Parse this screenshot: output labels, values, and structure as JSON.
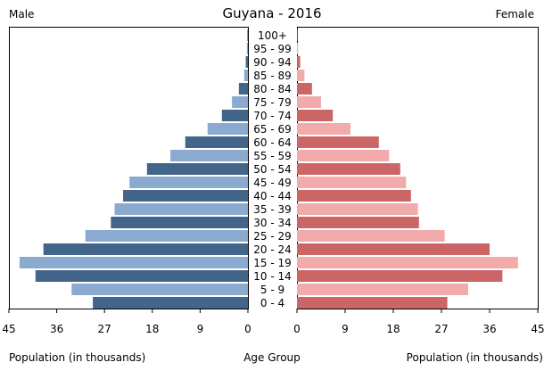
{
  "chart_data": {
    "type": "bar",
    "title": "Guyana - 2016",
    "left_label": "Male",
    "right_label": "Female",
    "xlabel_left": "Population (in thousands)",
    "xlabel_center": "Age Group",
    "xlabel_right": "Population (in thousands)",
    "xlim": [
      0,
      45
    ],
    "x_ticks": [
      45,
      36,
      27,
      18,
      9,
      0
    ],
    "x_ticks_right": [
      0,
      9,
      18,
      27,
      36,
      45
    ],
    "categories": [
      "100+",
      "95 - 99",
      "90 - 94",
      "85 - 89",
      "80 - 84",
      "75 - 79",
      "70 - 74",
      "65 - 69",
      "60 - 64",
      "55 - 59",
      "50 - 54",
      "45 - 49",
      "40 - 44",
      "35 - 39",
      "30 - 34",
      "25 - 29",
      "20 - 24",
      "15 - 19",
      "10 - 14",
      "5 - 9",
      "0 - 4"
    ],
    "series": [
      {
        "name": "Male",
        "values": [
          0.1,
          0.2,
          0.4,
          0.7,
          1.7,
          3.0,
          4.9,
          7.6,
          11.8,
          14.6,
          19.0,
          22.3,
          23.5,
          25.1,
          25.8,
          30.6,
          38.5,
          43.0,
          40.0,
          33.2,
          29.2
        ]
      },
      {
        "name": "Female",
        "values": [
          0.1,
          0.2,
          0.6,
          1.4,
          2.8,
          4.5,
          6.7,
          10.0,
          15.3,
          17.2,
          19.3,
          20.4,
          21.3,
          22.6,
          22.8,
          27.6,
          36.0,
          41.3,
          38.4,
          32.0,
          28.1
        ]
      }
    ],
    "colors": {
      "male_dark": "#436589",
      "male_light": "#8aabcf",
      "female_dark": "#cc6666",
      "female_light": "#f2aaaa"
    },
    "grid": false,
    "legend": "none"
  }
}
